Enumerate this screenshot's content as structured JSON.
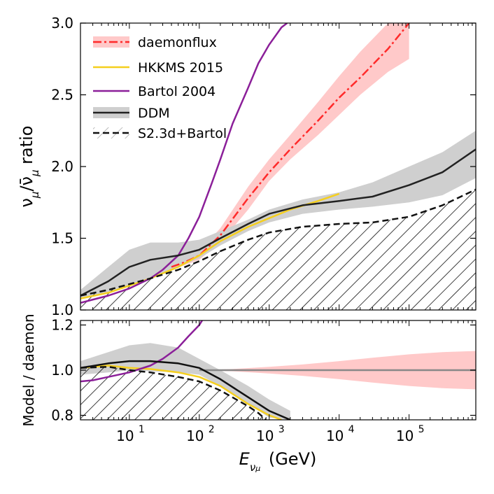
{
  "chart_data": [
    {
      "type": "line",
      "panel": "top",
      "xlabel": "E_{ν_μ} (GeV)",
      "ylabel": "ν_μ/ν̄_μ ratio",
      "x_scale": "log",
      "xlim": [
        2,
        900000
      ],
      "ylim": [
        1.0,
        3.0
      ],
      "yticks": [
        "1.0",
        "1.5",
        "2.0",
        "2.5",
        "3.0"
      ],
      "legend_position": "top-left",
      "legend": [
        "daemonflux",
        "HKKMS 2015",
        "Bartol 2004",
        "DDM",
        "S2.3d+Bartol"
      ],
      "series": [
        {
          "name": "daemonflux",
          "color": "#ff2a2a",
          "style": "dash-dot",
          "band_color": "#ffc9c9",
          "x": [
            40,
            60,
            100,
            200,
            500,
            1000,
            2000,
            5000,
            10000,
            20000,
            50000,
            100000
          ],
          "y": [
            1.3,
            1.33,
            1.38,
            1.52,
            1.78,
            1.96,
            2.12,
            2.32,
            2.48,
            2.62,
            2.82,
            3.0
          ],
          "band_low": [
            1.28,
            1.31,
            1.35,
            1.47,
            1.7,
            1.9,
            2.05,
            2.22,
            2.36,
            2.5,
            2.66,
            2.75
          ],
          "band_high": [
            1.32,
            1.35,
            1.41,
            1.57,
            1.86,
            2.05,
            2.22,
            2.45,
            2.63,
            2.8,
            3.0,
            3.0
          ]
        },
        {
          "name": "HKKMS 2015",
          "color": "#f5cf1e",
          "style": "solid",
          "x": [
            2,
            5,
            10,
            20,
            50,
            100,
            200,
            500,
            1000,
            2000,
            5000,
            10000
          ],
          "y": [
            1.08,
            1.12,
            1.17,
            1.22,
            1.3,
            1.38,
            1.48,
            1.58,
            1.64,
            1.7,
            1.76,
            1.81
          ]
        },
        {
          "name": "Bartol 2004",
          "color": "#8b1f99",
          "style": "solid",
          "x": [
            2,
            5,
            10,
            20,
            30,
            50,
            70,
            100,
            150,
            200,
            300,
            500,
            700,
            1000,
            1500,
            1800
          ],
          "y": [
            1.05,
            1.1,
            1.15,
            1.22,
            1.28,
            1.38,
            1.5,
            1.65,
            1.88,
            2.05,
            2.3,
            2.55,
            2.72,
            2.85,
            2.97,
            3.0
          ]
        },
        {
          "name": "DDM",
          "color": "#222222",
          "style": "solid",
          "band_color": "#cfcfcf",
          "x": [
            2,
            5,
            10,
            20,
            50,
            100,
            200,
            500,
            1000,
            3000,
            10000,
            30000,
            100000,
            300000,
            900000
          ],
          "y": [
            1.1,
            1.2,
            1.3,
            1.35,
            1.38,
            1.42,
            1.5,
            1.6,
            1.67,
            1.73,
            1.76,
            1.79,
            1.87,
            1.96,
            2.12
          ],
          "band_low": [
            1.08,
            1.12,
            1.17,
            1.22,
            1.3,
            1.36,
            1.45,
            1.55,
            1.61,
            1.67,
            1.7,
            1.72,
            1.75,
            1.8,
            1.92
          ],
          "band_high": [
            1.14,
            1.3,
            1.42,
            1.47,
            1.47,
            1.49,
            1.55,
            1.63,
            1.7,
            1.77,
            1.82,
            1.89,
            2.0,
            2.1,
            2.25
          ]
        },
        {
          "name": "S2.3d+Bartol",
          "color": "#111111",
          "style": "dashed",
          "x": [
            2,
            5,
            10,
            20,
            50,
            100,
            200,
            500,
            1000,
            3000,
            10000,
            30000,
            100000,
            300000,
            900000
          ],
          "y": [
            1.1,
            1.14,
            1.18,
            1.22,
            1.28,
            1.34,
            1.41,
            1.49,
            1.54,
            1.58,
            1.6,
            1.61,
            1.65,
            1.73,
            1.84
          ]
        }
      ]
    },
    {
      "type": "line",
      "panel": "bottom",
      "xlabel": "E_{ν_μ} (GeV)",
      "ylabel": "Model / daemon",
      "x_scale": "log",
      "xlim": [
        2,
        900000
      ],
      "ylim": [
        0.78,
        1.22
      ],
      "yticks": [
        "0.8",
        "1.0",
        "1.2"
      ],
      "xticks": [
        "10^1",
        "10^2",
        "10^3",
        "10^4",
        "10^5"
      ],
      "series": [
        {
          "name": "daemonflux",
          "color": "#888888",
          "style": "solid",
          "band_color": "#ffc9c9",
          "x": [
            100,
            300,
            1000,
            3000,
            10000,
            30000,
            100000,
            300000,
            900000
          ],
          "y": [
            1.0,
            1.0,
            1.0,
            1.0,
            1.0,
            1.0,
            1.0,
            1.0,
            1.0
          ],
          "band_low": [
            1.0,
            0.995,
            0.985,
            0.975,
            0.96,
            0.945,
            0.93,
            0.92,
            0.915
          ],
          "band_high": [
            1.0,
            1.005,
            1.015,
            1.025,
            1.04,
            1.055,
            1.07,
            1.08,
            1.085
          ]
        },
        {
          "name": "HKKMS 2015",
          "color": "#f5cf1e",
          "style": "solid",
          "x": [
            2,
            5,
            10,
            20,
            50,
            100,
            200,
            500,
            1000,
            1500
          ],
          "y": [
            1.01,
            1.02,
            1.01,
            1.005,
            0.99,
            0.97,
            0.93,
            0.85,
            0.8,
            0.78
          ]
        },
        {
          "name": "Bartol 2004",
          "color": "#8b1f99",
          "style": "solid",
          "x": [
            2,
            3,
            5,
            10,
            20,
            30,
            50,
            70,
            100,
            110
          ],
          "y": [
            0.95,
            0.955,
            0.97,
            0.99,
            1.02,
            1.05,
            1.1,
            1.15,
            1.2,
            1.22
          ]
        },
        {
          "name": "DDM",
          "color": "#111111",
          "style": "solid",
          "band_color": "#cfcfcf",
          "x": [
            2,
            5,
            10,
            20,
            50,
            100,
            200,
            500,
            1000,
            2000
          ],
          "y": [
            1.01,
            1.03,
            1.04,
            1.04,
            1.03,
            1.01,
            0.96,
            0.88,
            0.82,
            0.78
          ],
          "band_low": [
            0.98,
            0.99,
            1.0,
            0.995,
            0.99,
            0.98,
            0.93,
            0.85,
            0.79,
            0.78
          ],
          "band_high": [
            1.04,
            1.08,
            1.11,
            1.12,
            1.1,
            1.05,
            1.0,
            0.93,
            0.87,
            0.82
          ]
        },
        {
          "name": "S2.3d+Bartol",
          "color": "#111111",
          "style": "dashed",
          "x": [
            2,
            5,
            10,
            20,
            50,
            100,
            200,
            500,
            700,
            900
          ],
          "y": [
            1.01,
            1.015,
            1.0,
            0.99,
            0.97,
            0.95,
            0.91,
            0.84,
            0.81,
            0.78
          ]
        }
      ]
    }
  ]
}
